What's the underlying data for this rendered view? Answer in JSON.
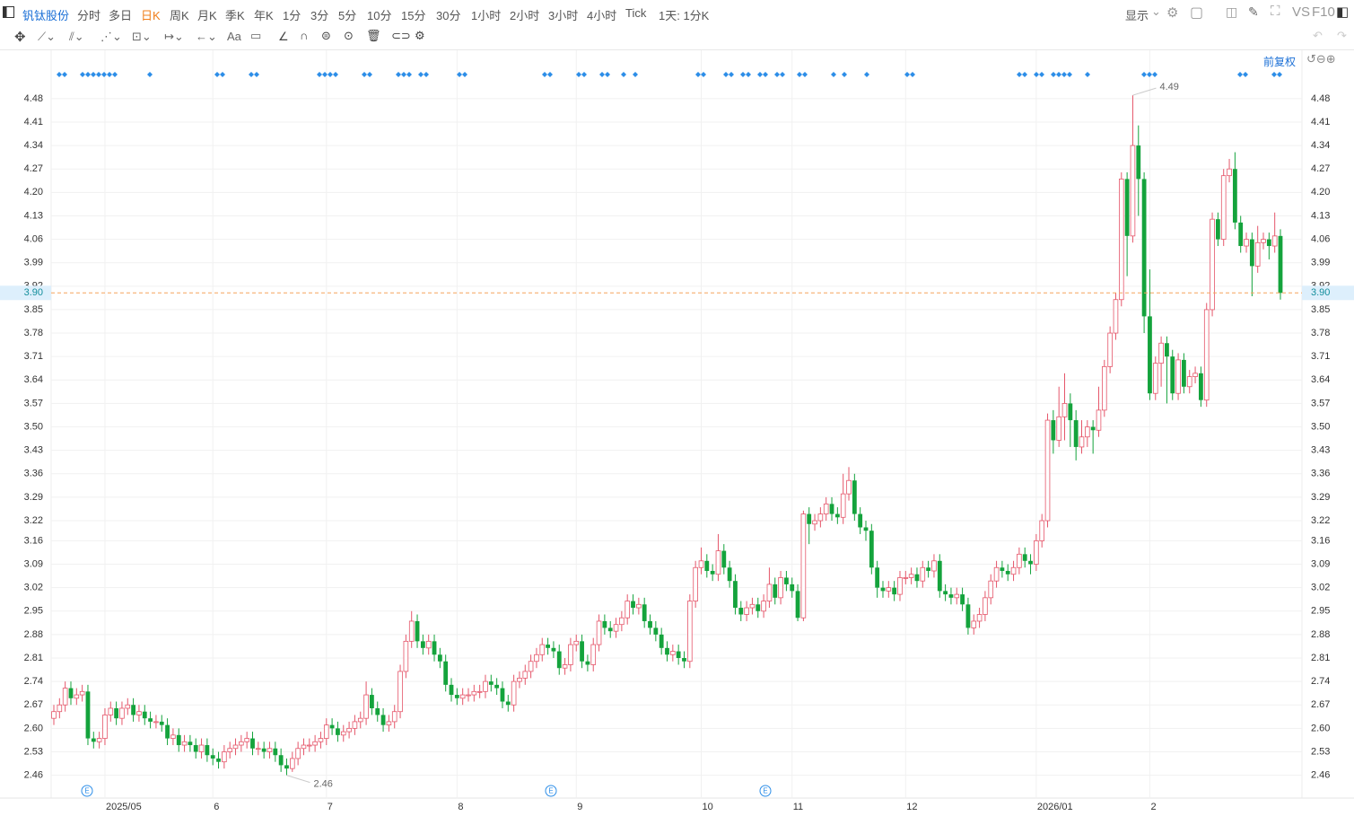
{
  "toolbar": {
    "stock": "钒钛股份",
    "periods": [
      "分时",
      "多日",
      "日K",
      "周K",
      "月K",
      "季K",
      "年K",
      "1分",
      "3分",
      "5分",
      "10分",
      "15分",
      "30分",
      "1小时",
      "2小时",
      "3小时",
      "4小时",
      "Tick",
      "1天: 1分K"
    ],
    "display": "显示",
    "vs": "VS",
    "f10": "F10",
    "text_tool": "Aa",
    "adjust": "前复权"
  },
  "chart_data": {
    "type": "candlestick",
    "up_color": "#e5566a",
    "down_color": "#14a33c",
    "grid": true,
    "ylim": [
      2.4,
      4.56
    ],
    "yticks": [
      4.48,
      4.41,
      4.34,
      4.27,
      {
        "value": 4.2,
        "label": "4.20"
      },
      4.13,
      4.06,
      3.99,
      3.92,
      3.85,
      3.78,
      3.71,
      3.64,
      3.57,
      {
        "value": 3.5,
        "label": "3.50"
      },
      3.43,
      3.36,
      3.29,
      3.22,
      3.16,
      3.09,
      3.02,
      2.95,
      2.88,
      2.81,
      2.74,
      2.67,
      {
        "value": 2.6,
        "label": "2.60"
      },
      2.53,
      2.46
    ],
    "current_price": {
      "value": 3.9,
      "label": "3.90"
    },
    "high_label": 4.49,
    "low_label": 2.46,
    "categories": [
      null,
      null,
      null,
      null,
      null,
      null,
      null,
      null,
      null,
      "2025/05",
      null,
      null,
      null,
      null,
      null,
      null,
      null,
      null,
      null,
      null,
      null,
      null,
      null,
      null,
      null,
      null,
      null,
      null,
      "6",
      null,
      null,
      null,
      null,
      null,
      null,
      null,
      null,
      null,
      null,
      null,
      null,
      null,
      null,
      null,
      null,
      null,
      null,
      null,
      "7",
      null,
      null,
      null,
      null,
      null,
      null,
      null,
      null,
      null,
      null,
      null,
      null,
      null,
      null,
      null,
      null,
      null,
      null,
      null,
      null,
      null,
      null,
      "8",
      null,
      null,
      null,
      null,
      null,
      null,
      null,
      null,
      null,
      null,
      null,
      null,
      null,
      null,
      null,
      null,
      null,
      null,
      null,
      null,
      "9",
      null,
      null,
      null,
      null,
      null,
      null,
      null,
      null,
      null,
      null,
      null,
      null,
      null,
      null,
      null,
      null,
      null,
      null,
      null,
      null,
      null,
      "10",
      null,
      null,
      null,
      null,
      null,
      null,
      null,
      null,
      null,
      null,
      null,
      null,
      null,
      null,
      null,
      "11",
      null,
      null,
      null,
      null,
      null,
      null,
      null,
      null,
      null,
      null,
      null,
      null,
      null,
      null,
      null,
      null,
      null,
      null,
      null,
      "12",
      null,
      null,
      null,
      null,
      null,
      null,
      null,
      null,
      null,
      null,
      null,
      null,
      null,
      null,
      null,
      null,
      null,
      null,
      null,
      null,
      null,
      null,
      "2026/01",
      null,
      null,
      null,
      null,
      null,
      null,
      null,
      null,
      null,
      null,
      null,
      null,
      null,
      null,
      null,
      null,
      null,
      null,
      null,
      "2",
      null,
      null,
      null,
      null,
      null,
      null,
      null,
      null,
      null,
      null,
      null,
      null,
      null,
      null,
      null,
      null,
      null,
      null,
      null,
      null,
      null,
      null,
      null
    ],
    "open": [
      2.63,
      2.65,
      2.67,
      2.72,
      2.69,
      2.7,
      2.71,
      2.57,
      2.56,
      2.57,
      2.64,
      2.66,
      2.63,
      2.66,
      2.67,
      2.64,
      2.65,
      2.63,
      2.62,
      2.62,
      2.61,
      2.57,
      2.58,
      2.55,
      2.56,
      2.55,
      2.53,
      2.55,
      2.52,
      2.51,
      2.5,
      2.53,
      2.54,
      2.55,
      2.56,
      2.57,
      2.54,
      2.54,
      2.53,
      2.54,
      2.52,
      2.49,
      2.48,
      2.51,
      2.54,
      2.55,
      2.55,
      2.56,
      2.57,
      2.61,
      2.6,
      2.58,
      2.59,
      2.6,
      2.62,
      2.63,
      2.7,
      2.66,
      2.64,
      2.61,
      2.62,
      2.65,
      2.77,
      2.86,
      2.92,
      2.86,
      2.84,
      2.86,
      2.82,
      2.8,
      2.73,
      2.7,
      2.69,
      2.7,
      2.7,
      2.71,
      2.71,
      2.74,
      2.73,
      2.72,
      2.68,
      2.67,
      2.74,
      2.75,
      2.77,
      2.8,
      2.82,
      2.85,
      2.84,
      2.83,
      2.78,
      2.79,
      2.85,
      2.86,
      2.8,
      2.79,
      2.85,
      2.92,
      2.9,
      2.89,
      2.91,
      2.93,
      2.98,
      2.96,
      2.97,
      2.92,
      2.9,
      2.88,
      2.84,
      2.82,
      2.83,
      2.81,
      2.8,
      2.98,
      3.08,
      3.1,
      3.07,
      3.06,
      3.13,
      3.08,
      3.04,
      2.96,
      2.94,
      2.96,
      2.97,
      2.95,
      2.98,
      3.03,
      2.99,
      3.05,
      3.03,
      3.01,
      2.93,
      3.24,
      3.21,
      3.22,
      3.24,
      3.27,
      3.24,
      3.23,
      3.3,
      3.34,
      3.24,
      3.2,
      3.19,
      3.08,
      3.02,
      3.01,
      3.02,
      3.0,
      3.05,
      3.05,
      3.06,
      3.04,
      3.08,
      3.07,
      3.1,
      3.01,
      3.0,
      2.99,
      3.0,
      2.97,
      2.9,
      2.92,
      2.94,
      2.99,
      3.04,
      3.08,
      3.07,
      3.06,
      3.08,
      3.12,
      3.1,
      3.09,
      3.16,
      3.22,
      3.52,
      3.46,
      3.53,
      3.57,
      3.52,
      3.44,
      3.47,
      3.5,
      3.49,
      3.55,
      3.68,
      3.78,
      3.88,
      4.24,
      4.07,
      4.34,
      4.24,
      3.83,
      3.6,
      3.69,
      3.75,
      3.71,
      3.6,
      3.7,
      3.62,
      3.65,
      3.66,
      3.58,
      3.85,
      4.12,
      4.06,
      4.25,
      4.27,
      4.11,
      4.04,
      4.06,
      3.98,
      4.05,
      4.06,
      4.04,
      4.07
    ],
    "high": [
      2.67,
      2.69,
      2.74,
      2.74,
      2.72,
      2.73,
      2.73,
      2.59,
      2.59,
      2.66,
      2.68,
      2.68,
      2.68,
      2.69,
      2.69,
      2.67,
      2.67,
      2.65,
      2.64,
      2.64,
      2.63,
      2.6,
      2.6,
      2.58,
      2.58,
      2.57,
      2.57,
      2.57,
      2.54,
      2.53,
      2.55,
      2.56,
      2.57,
      2.58,
      2.59,
      2.59,
      2.56,
      2.56,
      2.56,
      2.56,
      2.54,
      2.51,
      2.53,
      2.56,
      2.57,
      2.57,
      2.58,
      2.59,
      2.63,
      2.63,
      2.62,
      2.61,
      2.62,
      2.64,
      2.65,
      2.74,
      2.72,
      2.68,
      2.66,
      2.64,
      2.67,
      2.79,
      2.88,
      2.95,
      2.94,
      2.88,
      2.88,
      2.88,
      2.84,
      2.82,
      2.75,
      2.72,
      2.72,
      2.72,
      2.73,
      2.73,
      2.76,
      2.76,
      2.75,
      2.74,
      2.7,
      2.76,
      2.77,
      2.79,
      2.82,
      2.84,
      2.87,
      2.87,
      2.86,
      2.85,
      2.81,
      2.87,
      2.88,
      2.88,
      2.82,
      2.87,
      2.94,
      2.94,
      2.92,
      2.93,
      2.95,
      3.0,
      3.0,
      2.99,
      2.99,
      2.94,
      2.92,
      2.9,
      2.86,
      2.85,
      2.85,
      2.83,
      3.0,
      3.1,
      3.14,
      3.12,
      3.09,
      3.18,
      3.15,
      3.1,
      3.06,
      2.98,
      2.98,
      2.99,
      2.99,
      3.0,
      3.08,
      3.05,
      3.07,
      3.07,
      3.05,
      3.03,
      3.25,
      3.26,
      3.24,
      3.26,
      3.29,
      3.29,
      3.26,
      3.36,
      3.38,
      3.36,
      3.26,
      3.22,
      3.21,
      3.1,
      3.04,
      3.04,
      3.04,
      3.07,
      3.07,
      3.08,
      3.08,
      3.1,
      3.1,
      3.12,
      3.12,
      3.03,
      3.02,
      3.02,
      3.02,
      2.99,
      2.94,
      2.96,
      3.01,
      3.06,
      3.1,
      3.1,
      3.09,
      3.1,
      3.14,
      3.14,
      3.12,
      3.18,
      3.24,
      3.54,
      3.55,
      3.62,
      3.66,
      3.6,
      3.55,
      3.52,
      3.52,
      3.52,
      3.62,
      3.7,
      3.8,
      3.9,
      4.26,
      4.26,
      4.49,
      4.4,
      4.26,
      3.97,
      3.71,
      3.77,
      3.77,
      3.73,
      3.72,
      3.72,
      3.67,
      3.68,
      3.68,
      3.87,
      4.14,
      4.14,
      4.27,
      4.3,
      4.32,
      4.13,
      4.08,
      4.08,
      4.1,
      4.08,
      4.08,
      4.14,
      4.09
    ],
    "low": [
      2.61,
      2.63,
      2.65,
      2.67,
      2.67,
      2.68,
      2.55,
      2.54,
      2.54,
      2.55,
      2.62,
      2.61,
      2.61,
      2.64,
      2.62,
      2.62,
      2.61,
      2.6,
      2.6,
      2.59,
      2.55,
      2.55,
      2.53,
      2.53,
      2.53,
      2.51,
      2.51,
      2.5,
      2.49,
      2.48,
      2.48,
      2.51,
      2.52,
      2.53,
      2.54,
      2.52,
      2.52,
      2.51,
      2.51,
      2.5,
      2.47,
      2.46,
      2.47,
      2.49,
      2.52,
      2.53,
      2.53,
      2.54,
      2.55,
      2.58,
      2.56,
      2.56,
      2.57,
      2.58,
      2.6,
      2.61,
      2.64,
      2.62,
      2.59,
      2.59,
      2.6,
      2.63,
      2.75,
      2.84,
      2.84,
      2.82,
      2.82,
      2.8,
      2.78,
      2.71,
      2.68,
      2.67,
      2.67,
      2.68,
      2.68,
      2.69,
      2.69,
      2.71,
      2.7,
      2.66,
      2.65,
      2.65,
      2.72,
      2.73,
      2.75,
      2.78,
      2.8,
      2.82,
      2.81,
      2.76,
      2.76,
      2.77,
      2.83,
      2.78,
      2.77,
      2.77,
      2.83,
      2.88,
      2.87,
      2.87,
      2.89,
      2.91,
      2.94,
      2.94,
      2.9,
      2.88,
      2.86,
      2.82,
      2.8,
      2.8,
      2.79,
      2.78,
      2.78,
      2.96,
      3.06,
      3.05,
      3.04,
      3.04,
      3.06,
      3.02,
      2.94,
      2.92,
      2.92,
      2.94,
      2.93,
      2.93,
      2.96,
      2.97,
      2.97,
      3.01,
      2.99,
      2.92,
      2.92,
      3.15,
      3.19,
      3.2,
      3.22,
      3.22,
      3.21,
      3.21,
      3.28,
      3.22,
      3.18,
      3.16,
      3.06,
      2.99,
      2.99,
      2.99,
      2.98,
      2.98,
      3.03,
      3.03,
      3.02,
      3.02,
      3.05,
      3.05,
      2.99,
      2.98,
      2.97,
      2.97,
      2.95,
      2.88,
      2.88,
      2.9,
      2.92,
      2.97,
      3.02,
      3.05,
      3.04,
      3.04,
      3.06,
      3.08,
      3.06,
      3.07,
      3.14,
      3.2,
      3.42,
      3.44,
      3.46,
      3.44,
      3.4,
      3.42,
      3.44,
      3.42,
      3.47,
      3.53,
      3.66,
      3.76,
      3.86,
      3.95,
      4.05,
      4.13,
      3.78,
      3.58,
      3.58,
      3.62,
      3.57,
      3.58,
      3.58,
      3.6,
      3.6,
      3.63,
      3.56,
      3.56,
      3.83,
      4.04,
      4.04,
      4.23,
      4.09,
      4.02,
      4.02,
      3.89,
      3.96,
      4.03,
      4.0,
      4.02,
      3.88
    ],
    "close": [
      2.65,
      2.67,
      2.72,
      2.69,
      2.7,
      2.71,
      2.57,
      2.56,
      2.57,
      2.64,
      2.66,
      2.63,
      2.66,
      2.67,
      2.64,
      2.65,
      2.63,
      2.62,
      2.62,
      2.61,
      2.57,
      2.58,
      2.55,
      2.56,
      2.55,
      2.53,
      2.55,
      2.52,
      2.51,
      2.5,
      2.53,
      2.54,
      2.55,
      2.56,
      2.57,
      2.54,
      2.54,
      2.53,
      2.54,
      2.52,
      2.49,
      2.48,
      2.51,
      2.54,
      2.55,
      2.55,
      2.56,
      2.57,
      2.61,
      2.6,
      2.58,
      2.59,
      2.6,
      2.62,
      2.63,
      2.7,
      2.66,
      2.64,
      2.61,
      2.62,
      2.65,
      2.77,
      2.86,
      2.92,
      2.86,
      2.84,
      2.86,
      2.82,
      2.8,
      2.73,
      2.7,
      2.69,
      2.7,
      2.7,
      2.71,
      2.71,
      2.74,
      2.73,
      2.72,
      2.68,
      2.67,
      2.74,
      2.75,
      2.77,
      2.8,
      2.82,
      2.85,
      2.84,
      2.83,
      2.78,
      2.79,
      2.85,
      2.86,
      2.8,
      2.79,
      2.85,
      2.92,
      2.9,
      2.89,
      2.91,
      2.93,
      2.98,
      2.96,
      2.97,
      2.92,
      2.9,
      2.88,
      2.84,
      2.82,
      2.83,
      2.81,
      2.8,
      2.98,
      3.08,
      3.1,
      3.07,
      3.06,
      3.13,
      3.08,
      3.04,
      2.96,
      2.94,
      2.96,
      2.97,
      2.95,
      2.98,
      3.03,
      2.99,
      3.05,
      3.03,
      3.01,
      2.93,
      3.24,
      3.21,
      3.22,
      3.24,
      3.27,
      3.24,
      3.23,
      3.3,
      3.34,
      3.24,
      3.2,
      3.19,
      3.08,
      3.02,
      3.01,
      3.02,
      3.0,
      3.05,
      3.05,
      3.06,
      3.04,
      3.08,
      3.07,
      3.1,
      3.01,
      3.0,
      2.99,
      3.0,
      2.97,
      2.9,
      2.92,
      2.94,
      2.99,
      3.04,
      3.08,
      3.07,
      3.06,
      3.08,
      3.12,
      3.1,
      3.09,
      3.16,
      3.22,
      3.52,
      3.46,
      3.53,
      3.57,
      3.52,
      3.44,
      3.47,
      3.5,
      3.49,
      3.55,
      3.68,
      3.78,
      3.88,
      4.24,
      4.07,
      4.34,
      4.24,
      3.83,
      3.6,
      3.69,
      3.75,
      3.71,
      3.6,
      3.7,
      3.62,
      3.65,
      3.66,
      3.58,
      3.85,
      4.12,
      4.06,
      4.25,
      4.27,
      4.11,
      4.04,
      4.06,
      3.98,
      4.05,
      4.06,
      4.04,
      4.07,
      3.9
    ]
  }
}
